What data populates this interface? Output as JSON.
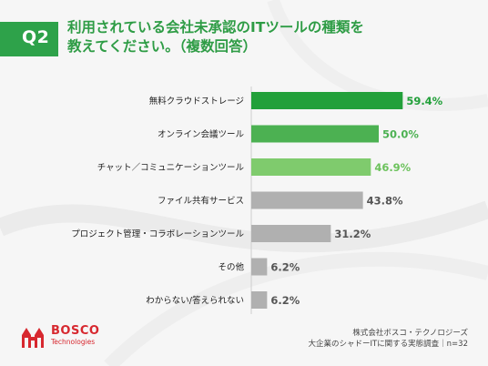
{
  "header": {
    "question_no": "Q2",
    "title_line1": "利用されている会社未承認のITツールの種類を",
    "title_line2": "教えてください。（複数回答）"
  },
  "chart_data": {
    "type": "bar",
    "orientation": "horizontal",
    "categories": [
      "無料クラウドストレージ",
      "オンライン会議ツール",
      "チャット／コミュニケーションツール",
      "ファイル共有サービス",
      "プロジェクト管理・コラボレーションツール",
      "その他",
      "わからない/答えられない"
    ],
    "values": [
      59.4,
      50.0,
      46.9,
      43.8,
      31.2,
      6.2,
      6.2
    ],
    "value_labels": [
      "59.4%",
      "50.0%",
      "46.9%",
      "43.8%",
      "31.2%",
      "6.2%",
      "6.2%"
    ],
    "bar_colors": [
      "#22a03a",
      "#4cb152",
      "#7fcb6d",
      "#b0b0b0",
      "#b0b0b0",
      "#b0b0b0",
      "#b0b0b0"
    ],
    "label_colors": [
      "#22a03a",
      "#4cb152",
      "#6cc25c",
      "#555555",
      "#555555",
      "#555555",
      "#555555"
    ],
    "xlim": [
      0,
      100
    ],
    "grid": false,
    "legend": "none"
  },
  "footer": {
    "logo_name": "BOSCO",
    "logo_sub": "Technologies",
    "source_line1": "株式会社ボスコ・テクノロジーズ",
    "source_line2": "大企業のシャドーITに関する実態調査｜n=32"
  },
  "colors": {
    "accent_green": "#2ea24a",
    "brand_red": "#d7282f"
  }
}
